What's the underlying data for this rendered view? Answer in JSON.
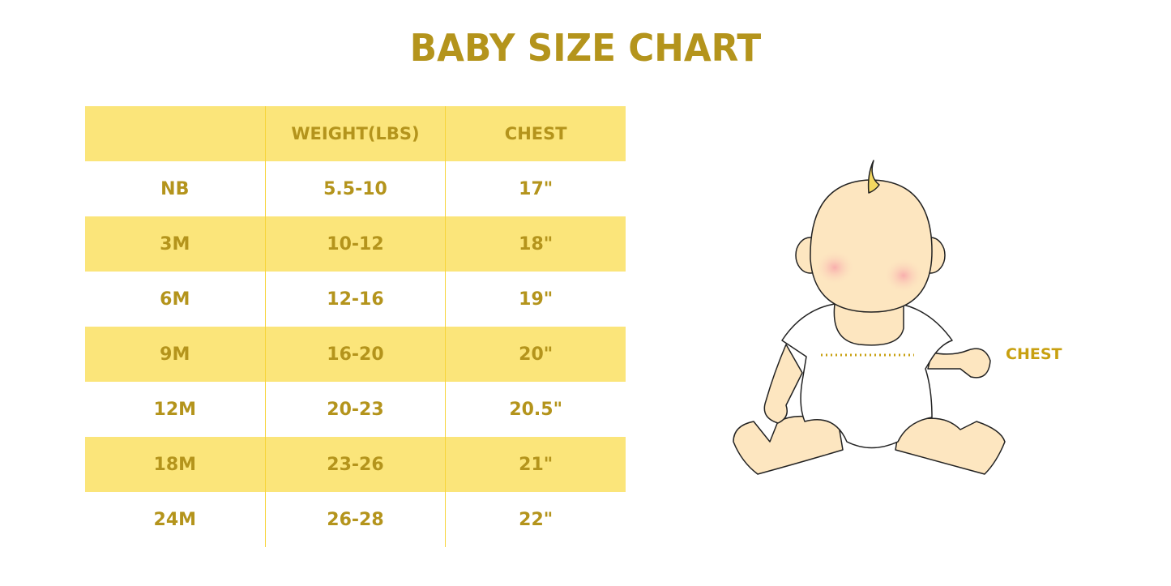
{
  "title": "BABY SIZE CHART",
  "table": {
    "headers": [
      "",
      "WEIGHT(LBS)",
      "CHEST"
    ],
    "rows": [
      [
        "NB",
        "5.5-10",
        "17\""
      ],
      [
        "3M",
        "10-12",
        "18\""
      ],
      [
        "6M",
        "12-16",
        "19\""
      ],
      [
        "9M",
        "16-20",
        "20\""
      ],
      [
        "12M",
        "20-23",
        "20.5\""
      ],
      [
        "18M",
        "23-26",
        "21\""
      ],
      [
        "24M",
        "26-28",
        "22\""
      ]
    ]
  },
  "illustration": {
    "chest_label": "CHEST"
  },
  "colors": {
    "text": "#b4941c",
    "stripe": "#fbe57a",
    "skin": "#fde6c0"
  }
}
